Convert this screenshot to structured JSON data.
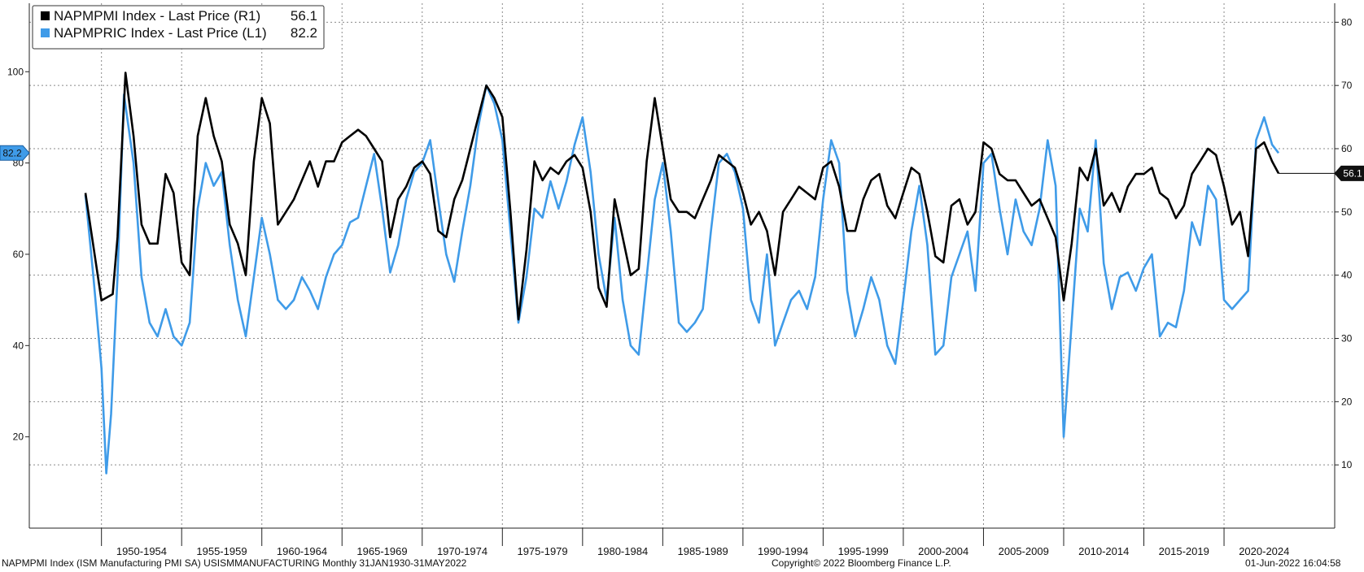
{
  "chart_data": {
    "type": "line",
    "x_range": [
      1944.5,
      2025.9
    ],
    "y_left_range": [
      0,
      115
    ],
    "y_right_range": [
      0,
      83
    ],
    "left_ticks": [
      20,
      40,
      60,
      80,
      100
    ],
    "right_ticks": [
      10,
      20,
      30,
      40,
      50,
      60,
      70,
      80
    ],
    "grid": true,
    "legend_position": "top-left",
    "x_categories": [
      "1950-1954",
      "1955-1959",
      "1960-1964",
      "1965-1969",
      "1970-1974",
      "1975-1979",
      "1980-1984",
      "1985-1989",
      "1990-1994",
      "1995-1999",
      "2000-2004",
      "2005-2009",
      "2010-2014",
      "2015-2019",
      "2020-2024"
    ],
    "series": [
      {
        "name": "NAPMPMI Index - Last Price (R1)",
        "last_value": "56.1",
        "color": "#000000",
        "axis": "right",
        "points": [
          [
            1948,
            53
          ],
          [
            1949,
            36
          ],
          [
            1949.7,
            37
          ],
          [
            1950,
            46
          ],
          [
            1950.5,
            72
          ],
          [
            1951,
            62
          ],
          [
            1951.5,
            48
          ],
          [
            1952,
            45
          ],
          [
            1952.5,
            45
          ],
          [
            1953,
            56
          ],
          [
            1953.5,
            53
          ],
          [
            1954,
            42
          ],
          [
            1954.5,
            40
          ],
          [
            1955,
            62
          ],
          [
            1955.5,
            68
          ],
          [
            1956,
            62
          ],
          [
            1956.5,
            58
          ],
          [
            1957,
            48
          ],
          [
            1957.5,
            45
          ],
          [
            1958,
            40
          ],
          [
            1958.5,
            58
          ],
          [
            1959,
            68
          ],
          [
            1959.5,
            64
          ],
          [
            1960,
            48
          ],
          [
            1960.5,
            50
          ],
          [
            1961,
            52
          ],
          [
            1961.5,
            55
          ],
          [
            1962,
            58
          ],
          [
            1962.5,
            54
          ],
          [
            1963,
            58
          ],
          [
            1963.5,
            58
          ],
          [
            1964,
            61
          ],
          [
            1964.5,
            62
          ],
          [
            1965,
            63
          ],
          [
            1965.5,
            62
          ],
          [
            1966,
            60
          ],
          [
            1966.5,
            58
          ],
          [
            1967,
            46
          ],
          [
            1967.5,
            52
          ],
          [
            1968,
            54
          ],
          [
            1968.5,
            57
          ],
          [
            1969,
            58
          ],
          [
            1969.5,
            56
          ],
          [
            1970,
            47
          ],
          [
            1970.5,
            46
          ],
          [
            1971,
            52
          ],
          [
            1971.5,
            55
          ],
          [
            1972,
            60
          ],
          [
            1972.5,
            65
          ],
          [
            1973,
            70
          ],
          [
            1973.5,
            68
          ],
          [
            1974,
            65
          ],
          [
            1974.5,
            50
          ],
          [
            1975,
            33
          ],
          [
            1975.5,
            44
          ],
          [
            1976,
            58
          ],
          [
            1976.5,
            55
          ],
          [
            1977,
            57
          ],
          [
            1977.5,
            56
          ],
          [
            1978,
            58
          ],
          [
            1978.5,
            59
          ],
          [
            1979,
            57
          ],
          [
            1979.5,
            50
          ],
          [
            1980,
            38
          ],
          [
            1980.5,
            35
          ],
          [
            1981,
            52
          ],
          [
            1981.5,
            46
          ],
          [
            1982,
            40
          ],
          [
            1982.5,
            41
          ],
          [
            1983,
            58
          ],
          [
            1983.5,
            68
          ],
          [
            1984,
            60
          ],
          [
            1984.5,
            52
          ],
          [
            1985,
            50
          ],
          [
            1985.5,
            50
          ],
          [
            1986,
            49
          ],
          [
            1986.5,
            52
          ],
          [
            1987,
            55
          ],
          [
            1987.5,
            59
          ],
          [
            1988,
            58
          ],
          [
            1988.5,
            57
          ],
          [
            1989,
            53
          ],
          [
            1989.5,
            48
          ],
          [
            1990,
            50
          ],
          [
            1990.5,
            47
          ],
          [
            1991,
            40
          ],
          [
            1991.5,
            50
          ],
          [
            1992,
            52
          ],
          [
            1992.5,
            54
          ],
          [
            1993,
            53
          ],
          [
            1993.5,
            52
          ],
          [
            1994,
            57
          ],
          [
            1994.5,
            58
          ],
          [
            1995,
            54
          ],
          [
            1995.5,
            47
          ],
          [
            1996,
            47
          ],
          [
            1996.5,
            52
          ],
          [
            1997,
            55
          ],
          [
            1997.5,
            56
          ],
          [
            1998,
            51
          ],
          [
            1998.5,
            49
          ],
          [
            1999,
            53
          ],
          [
            1999.5,
            57
          ],
          [
            2000,
            56
          ],
          [
            2000.5,
            50
          ],
          [
            2001,
            43
          ],
          [
            2001.5,
            42
          ],
          [
            2002,
            51
          ],
          [
            2002.5,
            52
          ],
          [
            2003,
            48
          ],
          [
            2003.5,
            50
          ],
          [
            2004,
            61
          ],
          [
            2004.5,
            60
          ],
          [
            2005,
            56
          ],
          [
            2005.5,
            55
          ],
          [
            2006,
            55
          ],
          [
            2006.5,
            53
          ],
          [
            2007,
            51
          ],
          [
            2007.5,
            52
          ],
          [
            2008,
            49
          ],
          [
            2008.5,
            46
          ],
          [
            2009,
            36
          ],
          [
            2009.5,
            45
          ],
          [
            2010,
            57
          ],
          [
            2010.5,
            55
          ],
          [
            2011,
            60
          ],
          [
            2011.5,
            51
          ],
          [
            2012,
            53
          ],
          [
            2012.5,
            50
          ],
          [
            2013,
            54
          ],
          [
            2013.5,
            56
          ],
          [
            2014,
            56
          ],
          [
            2014.5,
            57
          ],
          [
            2015,
            53
          ],
          [
            2015.5,
            52
          ],
          [
            2016,
            49
          ],
          [
            2016.5,
            51
          ],
          [
            2017,
            56
          ],
          [
            2017.5,
            58
          ],
          [
            2018,
            60
          ],
          [
            2018.5,
            59
          ],
          [
            2019,
            54
          ],
          [
            2019.5,
            48
          ],
          [
            2020,
            50
          ],
          [
            2020.5,
            43
          ],
          [
            2021,
            60
          ],
          [
            2021.5,
            61
          ],
          [
            2022,
            58
          ],
          [
            2022.4,
            56.1
          ]
        ]
      },
      {
        "name": "NAPMPRIC Index - Last Price (L1)",
        "last_value": "82.2",
        "color": "#3f9be8",
        "axis": "left",
        "points": [
          [
            1948,
            73
          ],
          [
            1948.5,
            55
          ],
          [
            1949,
            35
          ],
          [
            1949.3,
            12
          ],
          [
            1949.6,
            25
          ],
          [
            1950,
            55
          ],
          [
            1950.4,
            95
          ],
          [
            1951,
            80
          ],
          [
            1951.5,
            55
          ],
          [
            1952,
            45
          ],
          [
            1952.5,
            42
          ],
          [
            1953,
            48
          ],
          [
            1953.5,
            42
          ],
          [
            1954,
            40
          ],
          [
            1954.5,
            45
          ],
          [
            1955,
            70
          ],
          [
            1955.5,
            80
          ],
          [
            1956,
            75
          ],
          [
            1956.5,
            78
          ],
          [
            1957,
            62
          ],
          [
            1957.5,
            50
          ],
          [
            1958,
            42
          ],
          [
            1958.5,
            55
          ],
          [
            1959,
            68
          ],
          [
            1959.5,
            60
          ],
          [
            1960,
            50
          ],
          [
            1960.5,
            48
          ],
          [
            1961,
            50
          ],
          [
            1961.5,
            55
          ],
          [
            1962,
            52
          ],
          [
            1962.5,
            48
          ],
          [
            1963,
            55
          ],
          [
            1963.5,
            60
          ],
          [
            1964,
            62
          ],
          [
            1964.5,
            67
          ],
          [
            1965,
            68
          ],
          [
            1965.5,
            75
          ],
          [
            1966,
            82
          ],
          [
            1966.5,
            70
          ],
          [
            1967,
            56
          ],
          [
            1967.5,
            62
          ],
          [
            1968,
            72
          ],
          [
            1968.5,
            78
          ],
          [
            1969,
            80
          ],
          [
            1969.5,
            85
          ],
          [
            1970,
            72
          ],
          [
            1970.5,
            60
          ],
          [
            1971,
            54
          ],
          [
            1971.5,
            65
          ],
          [
            1972,
            75
          ],
          [
            1972.5,
            88
          ],
          [
            1973,
            97
          ],
          [
            1973.5,
            93
          ],
          [
            1974,
            85
          ],
          [
            1974.5,
            65
          ],
          [
            1975,
            45
          ],
          [
            1975.5,
            55
          ],
          [
            1976,
            70
          ],
          [
            1976.5,
            68
          ],
          [
            1977,
            76
          ],
          [
            1977.5,
            70
          ],
          [
            1978,
            76
          ],
          [
            1978.5,
            84
          ],
          [
            1979,
            90
          ],
          [
            1979.5,
            78
          ],
          [
            1980,
            60
          ],
          [
            1980.5,
            50
          ],
          [
            1981,
            68
          ],
          [
            1981.5,
            50
          ],
          [
            1982,
            40
          ],
          [
            1982.5,
            38
          ],
          [
            1983,
            55
          ],
          [
            1983.5,
            72
          ],
          [
            1984,
            80
          ],
          [
            1984.5,
            65
          ],
          [
            1985,
            45
          ],
          [
            1985.5,
            43
          ],
          [
            1986,
            45
          ],
          [
            1986.5,
            48
          ],
          [
            1987,
            65
          ],
          [
            1987.5,
            80
          ],
          [
            1988,
            82
          ],
          [
            1988.5,
            78
          ],
          [
            1989,
            70
          ],
          [
            1989.5,
            50
          ],
          [
            1990,
            45
          ],
          [
            1990.5,
            60
          ],
          [
            1991,
            40
          ],
          [
            1991.5,
            45
          ],
          [
            1992,
            50
          ],
          [
            1992.5,
            52
          ],
          [
            1993,
            48
          ],
          [
            1993.5,
            55
          ],
          [
            1994,
            72
          ],
          [
            1994.5,
            85
          ],
          [
            1995,
            80
          ],
          [
            1995.5,
            52
          ],
          [
            1996,
            42
          ],
          [
            1996.5,
            48
          ],
          [
            1997,
            55
          ],
          [
            1997.5,
            50
          ],
          [
            1998,
            40
          ],
          [
            1998.5,
            36
          ],
          [
            1999,
            50
          ],
          [
            1999.5,
            65
          ],
          [
            2000,
            75
          ],
          [
            2000.5,
            62
          ],
          [
            2001,
            38
          ],
          [
            2001.5,
            40
          ],
          [
            2002,
            55
          ],
          [
            2002.5,
            60
          ],
          [
            2003,
            65
          ],
          [
            2003.5,
            52
          ],
          [
            2004,
            80
          ],
          [
            2004.5,
            82
          ],
          [
            2005,
            70
          ],
          [
            2005.5,
            60
          ],
          [
            2006,
            72
          ],
          [
            2006.5,
            65
          ],
          [
            2007,
            62
          ],
          [
            2007.5,
            70
          ],
          [
            2008,
            85
          ],
          [
            2008.5,
            75
          ],
          [
            2009,
            20
          ],
          [
            2009.5,
            45
          ],
          [
            2010,
            70
          ],
          [
            2010.5,
            65
          ],
          [
            2011,
            85
          ],
          [
            2011.5,
            58
          ],
          [
            2012,
            48
          ],
          [
            2012.5,
            55
          ],
          [
            2013,
            56
          ],
          [
            2013.5,
            52
          ],
          [
            2014,
            57
          ],
          [
            2014.5,
            60
          ],
          [
            2015,
            42
          ],
          [
            2015.5,
            45
          ],
          [
            2016,
            44
          ],
          [
            2016.5,
            52
          ],
          [
            2017,
            67
          ],
          [
            2017.5,
            62
          ],
          [
            2018,
            75
          ],
          [
            2018.5,
            72
          ],
          [
            2019,
            50
          ],
          [
            2019.5,
            48
          ],
          [
            2020,
            50
          ],
          [
            2020.5,
            52
          ],
          [
            2021,
            85
          ],
          [
            2021.5,
            90
          ],
          [
            2022,
            84
          ],
          [
            2022.4,
            82.2
          ]
        ]
      }
    ]
  },
  "footer": {
    "left": "NAPMPMI Index (ISM Manufacturing PMI SA) USISMMANUFACTURING  Monthly 31JAN1930-31MAY2022",
    "center": "Copyright© 2022 Bloomberg Finance L.P.",
    "right": "01-Jun-2022 16:04:58"
  },
  "colors": {
    "pmi": "#000000",
    "prices": "#3f9be8",
    "grid": "#8a8a8a"
  }
}
